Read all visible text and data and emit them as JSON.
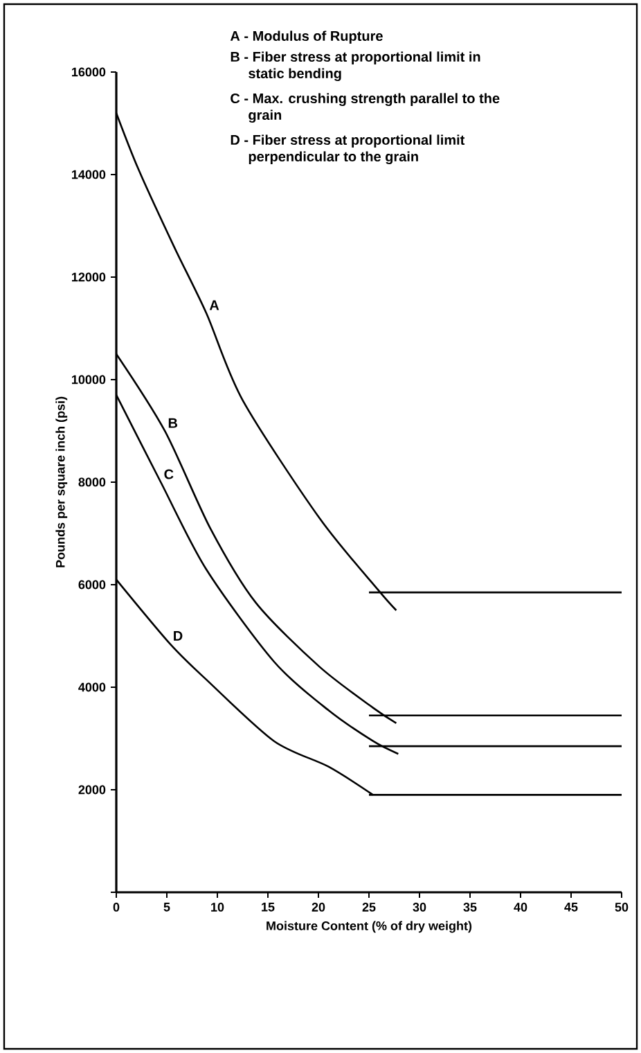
{
  "chart_data": {
    "type": "line",
    "xlabel": "Moisture Content (% of dry weight)",
    "ylabel": "Pounds per square inch (psi)",
    "xlim": [
      0,
      50
    ],
    "ylim": [
      0,
      16000
    ],
    "xticks": [
      0,
      5,
      10,
      15,
      20,
      25,
      30,
      35,
      40,
      45,
      50
    ],
    "yticks": [
      {
        "value": 0,
        "label": null
      },
      2000,
      4000,
      6000,
      8000,
      10000,
      12000,
      14000,
      16000
    ],
    "series": [
      {
        "name": "A",
        "color": "#000000",
        "x": [
          0,
          2.2,
          5.7,
          8.9,
          12.5,
          20.1,
          25.9,
          27.7
        ],
        "values": [
          15200,
          14100,
          12600,
          11300,
          9600,
          7300,
          5900,
          5500
        ]
      },
      {
        "color": "#000000",
        "x": [
          25,
          50
        ],
        "values": [
          5850,
          5850
        ]
      },
      {
        "name": "B",
        "color": "#000000",
        "x": [
          0,
          4.8,
          9.3,
          13.8,
          20.1,
          25.4,
          27.7
        ],
        "values": [
          10500,
          9000,
          7100,
          5650,
          4400,
          3600,
          3300
        ]
      },
      {
        "color": "#000000",
        "x": [
          25,
          50
        ],
        "values": [
          3450,
          3450
        ]
      },
      {
        "name": "C",
        "color": "#000000",
        "x": [
          0,
          4.4,
          8.9,
          15.6,
          21,
          25.4,
          27.9
        ],
        "values": [
          9700,
          8000,
          6300,
          4500,
          3550,
          2950,
          2700
        ]
      },
      {
        "color": "#000000",
        "x": [
          25,
          50
        ],
        "values": [
          2850,
          2850
        ]
      },
      {
        "name": "D",
        "color": "#000000",
        "x": [
          0,
          5.3,
          8.9,
          15.6,
          21,
          25.4
        ],
        "values": [
          6100,
          4850,
          4150,
          2950,
          2450,
          1900
        ]
      },
      {
        "color": "#000000",
        "x": [
          25,
          50
        ],
        "values": [
          1900,
          1900
        ]
      }
    ],
    "annotations": [
      "A - Modulus of Rupture",
      "B - Fiber stress at proportional limit in static bending",
      "C - Max. crushing strength parallel to the grain",
      "D - Fiber stress at proportional limit perpendicular to the grain"
    ],
    "legend": false,
    "grid": false,
    "marker": "none",
    "line_style": "solid"
  }
}
